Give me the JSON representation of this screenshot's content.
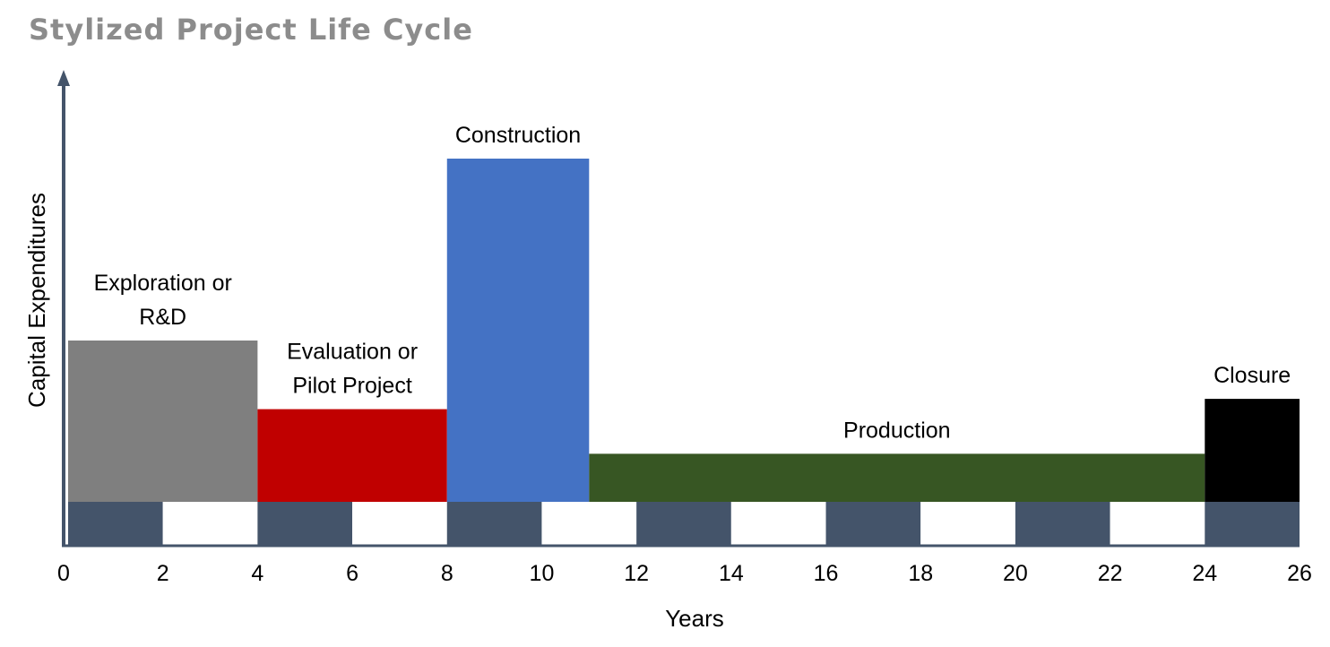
{
  "chart_data": {
    "type": "bar",
    "title": "Stylized Project Life Cycle",
    "xlabel": "Years",
    "ylabel": "Capital Expenditures",
    "xlim": [
      0,
      26
    ],
    "ylim": [
      0,
      1
    ],
    "x_ticks": [
      0,
      2,
      4,
      6,
      8,
      10,
      12,
      14,
      16,
      18,
      20,
      22,
      24,
      26
    ],
    "y_ticks_shown": false,
    "grid": false,
    "legend": "none",
    "phases": [
      {
        "name": "exploration",
        "label_lines": [
          "Exploration or",
          "R&D"
        ],
        "x_start": 0,
        "x_end": 4,
        "value": 0.47,
        "color": "#7f7f7f"
      },
      {
        "name": "evaluation",
        "label_lines": [
          "Evaluation or",
          "Pilot Project"
        ],
        "x_start": 4,
        "x_end": 8,
        "value": 0.27,
        "color": "#c00000"
      },
      {
        "name": "construction",
        "label_lines": [
          "Construction"
        ],
        "x_start": 8,
        "x_end": 11,
        "value": 1.0,
        "color": "#4472c4"
      },
      {
        "name": "production",
        "label_lines": [
          "Production"
        ],
        "x_start": 11,
        "x_end": 24,
        "value": 0.14,
        "color": "#375623"
      },
      {
        "name": "closure",
        "label_lines": [
          "Closure"
        ],
        "x_start": 24,
        "x_end": 26,
        "value": 0.3,
        "color": "#000000"
      }
    ],
    "timeline_band_color": "#44546a",
    "axis_color": "#44546a"
  }
}
